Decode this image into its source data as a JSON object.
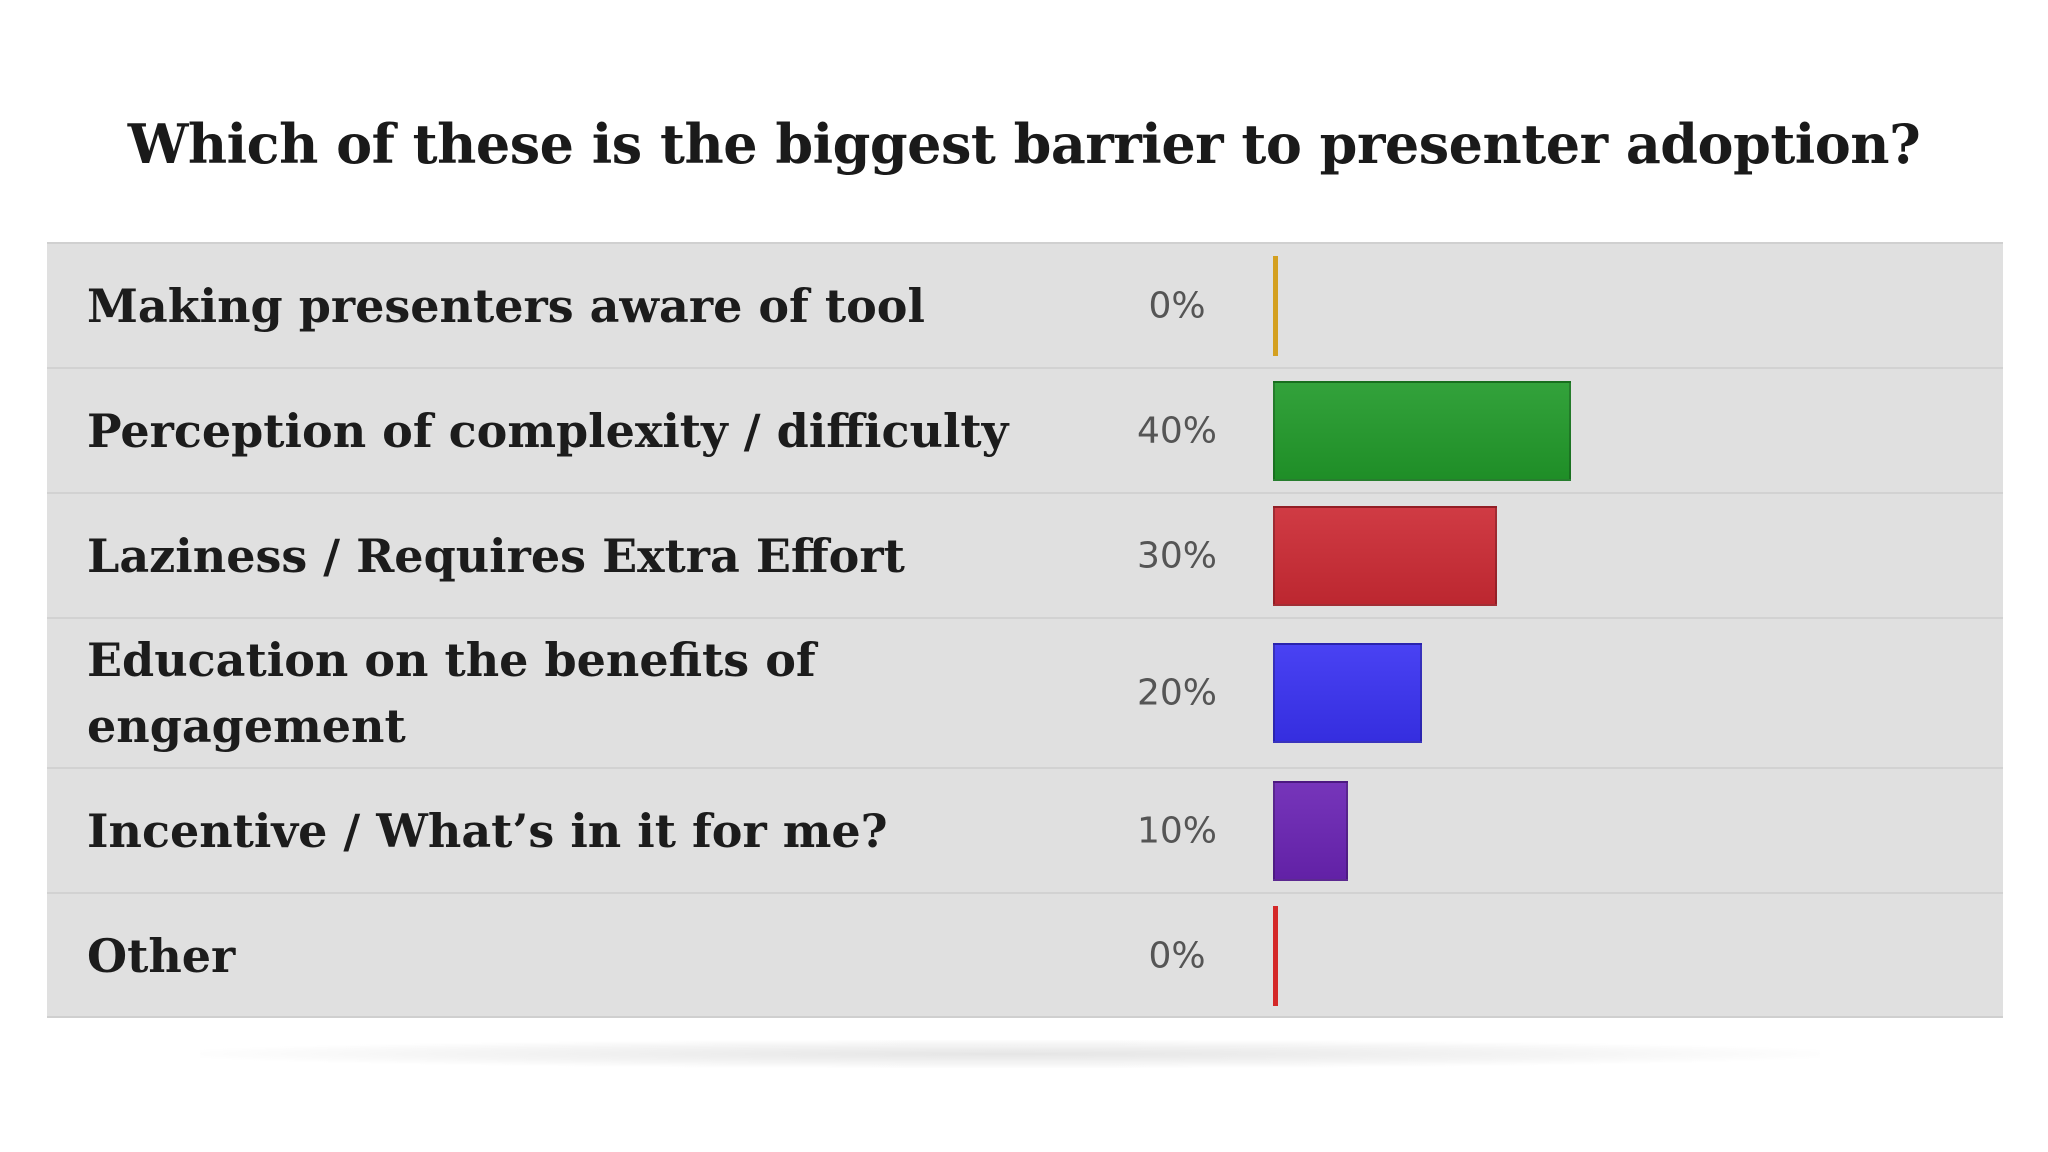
{
  "chart_data": {
    "type": "bar",
    "orientation": "horizontal",
    "title": "Which of these is the biggest barrier to presenter adoption?",
    "categories": [
      "Making presenters aware of tool",
      "Perception of complexity / difficulty",
      "Laziness / Requires Extra Effort",
      "Education on the benefits of engagement",
      "Incentive / What’s in it for me?",
      "Other"
    ],
    "values": [
      0,
      40,
      30,
      20,
      10,
      0
    ],
    "value_labels": [
      "0%",
      "40%",
      "30%",
      "20%",
      "10%",
      "0%"
    ],
    "colors": [
      "#d4a020",
      "#229a2a",
      "#cc2a34",
      "#3a32f2",
      "#6a24b4",
      "#d42828"
    ],
    "xlim": [
      0,
      100
    ],
    "grid": false,
    "legend": "none"
  }
}
